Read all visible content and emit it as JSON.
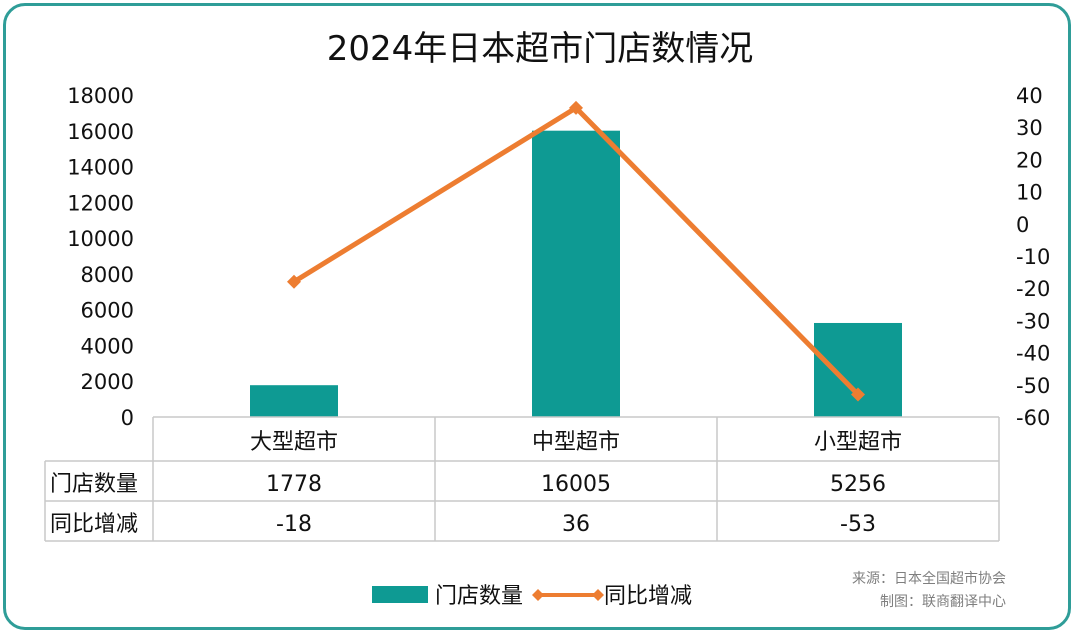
{
  "chart_data": {
    "type": "bar+line",
    "title": "2024年日本超市门店数情况",
    "categories": [
      "大型超市",
      "中型超市",
      "小型超市"
    ],
    "series": [
      {
        "name": "门店数量",
        "type": "bar",
        "axis": "left",
        "values": [
          1778,
          16005,
          5256
        ],
        "color": "#0e9a93"
      },
      {
        "name": "同比增减",
        "type": "line",
        "axis": "right",
        "values": [
          -18,
          36,
          -53
        ],
        "color": "#ed7d31"
      }
    ],
    "y_left": {
      "ylim": [
        0,
        18000
      ],
      "ticks": [
        "0",
        "2000",
        "4000",
        "6000",
        "8000",
        "10000",
        "12000",
        "14000",
        "16000",
        "18000"
      ]
    },
    "y_right": {
      "ylim": [
        -60,
        40
      ],
      "ticks": [
        "-60",
        "-50",
        "-40",
        "-30",
        "-20",
        "-10",
        "0",
        "10",
        "20",
        "30",
        "40"
      ]
    },
    "table": {
      "rows": [
        {
          "label": "门店数量",
          "values": [
            "1778",
            "16005",
            "5256"
          ]
        },
        {
          "label": "同比增减",
          "values": [
            "-18",
            "36",
            "-53"
          ]
        }
      ]
    },
    "legend": {
      "position": "bottom",
      "items": [
        "门店数量",
        "同比增减"
      ]
    },
    "grid": false
  },
  "source": {
    "line1": "来源：日本全国超市协会",
    "line2": "制图：联商翻译中心"
  }
}
